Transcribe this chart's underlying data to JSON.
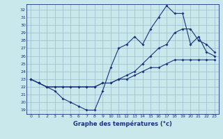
{
  "xlabel": "Graphe des températures (°c)",
  "background_color": "#c8e8ec",
  "grid_color": "#99bbcc",
  "line_color": "#1a3080",
  "xlim": [
    -0.5,
    23.5
  ],
  "ylim": [
    18.5,
    32.7
  ],
  "yticks": [
    19,
    20,
    21,
    22,
    23,
    24,
    25,
    26,
    27,
    28,
    29,
    30,
    31,
    32
  ],
  "xticks": [
    0,
    1,
    2,
    3,
    4,
    5,
    6,
    7,
    8,
    9,
    10,
    11,
    12,
    13,
    14,
    15,
    16,
    17,
    18,
    19,
    20,
    21,
    22,
    23
  ],
  "line1_x": [
    0,
    1,
    2,
    3,
    4,
    5,
    6,
    7,
    8,
    9,
    10,
    11,
    12,
    13,
    14,
    15,
    16,
    17,
    18,
    19,
    20,
    21,
    22,
    23
  ],
  "line1_y": [
    23.0,
    22.5,
    22.0,
    21.5,
    20.5,
    20.0,
    19.5,
    19.0,
    19.0,
    21.5,
    24.5,
    27.0,
    27.5,
    28.5,
    27.5,
    29.5,
    31.0,
    32.5,
    31.5,
    31.5,
    27.5,
    28.5,
    26.5,
    26.0
  ],
  "line2_x": [
    0,
    1,
    2,
    3,
    4,
    5,
    6,
    7,
    8,
    9,
    10,
    11,
    12,
    13,
    14,
    15,
    16,
    17,
    18,
    19,
    20,
    21,
    22,
    23
  ],
  "line2_y": [
    23.0,
    22.5,
    22.0,
    22.0,
    22.0,
    22.0,
    22.0,
    22.0,
    22.0,
    22.5,
    22.5,
    23.0,
    23.5,
    24.0,
    25.0,
    26.0,
    27.0,
    27.5,
    29.0,
    29.5,
    29.5,
    28.0,
    27.5,
    26.5
  ],
  "line3_x": [
    0,
    1,
    2,
    3,
    4,
    5,
    6,
    7,
    8,
    9,
    10,
    11,
    12,
    13,
    14,
    15,
    16,
    17,
    18,
    19,
    20,
    21,
    22,
    23
  ],
  "line3_y": [
    23.0,
    22.5,
    22.0,
    22.0,
    22.0,
    22.0,
    22.0,
    22.0,
    22.0,
    22.5,
    22.5,
    23.0,
    23.0,
    23.5,
    24.0,
    24.5,
    24.5,
    25.0,
    25.5,
    25.5,
    25.5,
    25.5,
    25.5,
    25.5
  ]
}
